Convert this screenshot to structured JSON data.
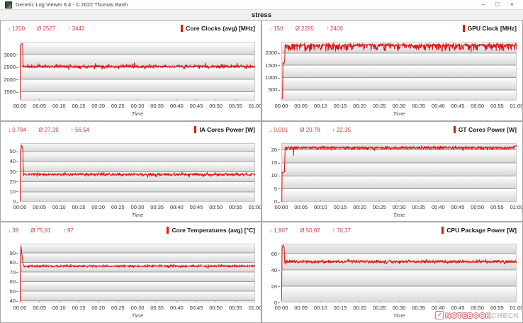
{
  "window": {
    "title": "Generic Log Viewer 6.4 - © 2022 Thomas Barth",
    "minimize": "–",
    "maximize": "□",
    "close": "×"
  },
  "header": {
    "title": "stress"
  },
  "watermark": {
    "brand_left": "NOTEBOOK",
    "brand_right": "CHECK",
    "check": "✓"
  },
  "chart_data": [
    {
      "type": "line",
      "title": "Core Clocks (avg) [MHz]",
      "stats": {
        "min": "↓ 1200",
        "avg": "Ø 2527",
        "max": "↑ 3442"
      },
      "xlabel": "Time",
      "x_ticks": [
        "00:00",
        "00:05",
        "00:10",
        "00:15",
        "00:20",
        "00:25",
        "00:30",
        "00:35",
        "00:40",
        "00:45",
        "00:50",
        "00:55",
        "01:00"
      ],
      "x_range_minutes": [
        0,
        60
      ],
      "y_ticks": [
        1500,
        2000,
        2500,
        3000
      ],
      "ylim": [
        1150,
        3520
      ],
      "line_color": "#dc1414",
      "series": {
        "pre": [
          [
            0,
            2500
          ],
          [
            0.04,
            1200
          ],
          [
            0.12,
            3350
          ],
          [
            0.5,
            3442
          ],
          [
            0.72,
            3442
          ],
          [
            0.8,
            2600
          ]
        ],
        "start": 0.8,
        "baseline": 2520,
        "noise": 42,
        "dip_freq": 0.05,
        "dip_amp": -110,
        "peak_freq": 0.06,
        "peak_amp": 130,
        "clamp": [
          1200,
          3442
        ],
        "events": [],
        "post": [],
        "seed": 11
      }
    },
    {
      "type": "line",
      "title": "GPU Clock [MHz]",
      "stats": {
        "min": "↓ 150",
        "avg": "Ø 2285",
        "max": "↑ 2400"
      },
      "xlabel": "Time",
      "x_ticks": [
        "00:00",
        "00:05",
        "00:10",
        "00:15",
        "00:20",
        "00:25",
        "00:30",
        "00:35",
        "00:40",
        "00:45",
        "00:50",
        "00:55",
        "01:00"
      ],
      "x_range_minutes": [
        0,
        60
      ],
      "y_ticks": [
        500,
        1000,
        1500,
        2000
      ],
      "ylim": [
        60,
        2460
      ],
      "line_color": "#dc1414",
      "series": {
        "pre": [
          [
            0,
            150
          ],
          [
            0.3,
            150
          ],
          [
            0.42,
            1620
          ],
          [
            0.5,
            1560
          ],
          [
            0.85,
            1620
          ],
          [
            0.95,
            2330
          ]
        ],
        "start": 0.95,
        "baseline": 2320,
        "noise": 45,
        "dip_freq": 0.28,
        "dip_amp": -240,
        "peak_freq": 0.15,
        "peak_amp": 70,
        "clamp": [
          150,
          2400
        ],
        "events": [],
        "post": [],
        "seed": 22
      }
    },
    {
      "type": "line",
      "title": "IA Cores Power [W]",
      "stats": {
        "min": "↓ 0,784",
        "avg": "Ø 27,29",
        "max": "↑ 56,54"
      },
      "xlabel": "Time",
      "x_ticks": [
        "00:00",
        "00:05",
        "00:10",
        "00:15",
        "00:20",
        "00:25",
        "00:30",
        "00:35",
        "00:40",
        "00:45",
        "00:50",
        "00:55",
        "01:00"
      ],
      "x_range_minutes": [
        0,
        60
      ],
      "y_ticks": [
        0,
        10,
        20,
        30,
        40,
        50
      ],
      "ylim": [
        0,
        58.5
      ],
      "line_color": "#dc1414",
      "series": {
        "pre": [
          [
            0,
            0.784
          ],
          [
            0.1,
            0.9
          ],
          [
            0.22,
            50
          ],
          [
            0.45,
            56.54
          ],
          [
            0.75,
            53
          ],
          [
            0.9,
            28.5
          ]
        ],
        "start": 0.9,
        "baseline": 27.3,
        "noise": 1.1,
        "dip_freq": 0.05,
        "dip_amp": -2.4,
        "peak_freq": 0.05,
        "peak_amp": 1.6,
        "clamp": [
          0.784,
          56.54
        ],
        "events": [],
        "post": [],
        "seed": 33
      }
    },
    {
      "type": "line",
      "title": "GT Cores Power [W]",
      "stats": {
        "min": "↓ 0,001",
        "avg": "Ø 20,78",
        "max": "↑ 22,35"
      },
      "xlabel": "Time",
      "x_ticks": [
        "00:00",
        "00:05",
        "00:10",
        "00:15",
        "00:20",
        "00:25",
        "00:30",
        "00:35",
        "00:40",
        "00:45",
        "00:50",
        "00:55",
        "01:00"
      ],
      "x_range_minutes": [
        0,
        60
      ],
      "y_ticks": [
        0,
        5,
        10,
        15,
        20
      ],
      "ylim": [
        0,
        22.6
      ],
      "line_color": "#dc1414",
      "series": {
        "pre": [
          [
            0,
            0.001
          ],
          [
            0.12,
            0.001
          ],
          [
            0.2,
            11.3
          ],
          [
            0.8,
            11.5
          ],
          [
            0.95,
            20.3
          ]
        ],
        "start": 0.95,
        "baseline": 20.8,
        "noise": 0.35,
        "dip_freq": 0.05,
        "dip_amp": -0.9,
        "peak_freq": 0.08,
        "peak_amp": 0.5,
        "clamp": [
          0.001,
          22.35
        ],
        "events": [
          [
            3.1,
            17.7
          ]
        ],
        "post": [
          [
            59.4,
            21.5
          ],
          [
            60,
            22.1
          ]
        ],
        "seed": 44
      }
    },
    {
      "type": "line",
      "title": "Core Temperatures (avg) [°C]",
      "stats": {
        "min": "↓ 39",
        "avg": "Ø 75,81",
        "max": "↑ 97"
      },
      "xlabel": "Time",
      "x_ticks": [
        "00:00",
        "00:05",
        "00:10",
        "00:15",
        "00:20",
        "00:25",
        "00:30",
        "00:35",
        "00:40",
        "00:45",
        "00:50",
        "00:55",
        "01:00"
      ],
      "x_range_minutes": [
        0,
        60
      ],
      "y_ticks": [
        40,
        50,
        60,
        70,
        80,
        90
      ],
      "ylim": [
        38,
        99.5
      ],
      "line_color": "#dc1414",
      "series": {
        "pre": [
          [
            0,
            39
          ],
          [
            0.08,
            39
          ],
          [
            0.3,
            97
          ],
          [
            0.5,
            89
          ],
          [
            0.8,
            79
          ],
          [
            1.0,
            76.5
          ]
        ],
        "start": 1.0,
        "baseline": 76,
        "noise": 0.8,
        "dip_freq": 0.04,
        "dip_amp": -1.2,
        "peak_freq": 0.05,
        "peak_amp": 1.6,
        "clamp": [
          39,
          97
        ],
        "events": [],
        "post": [],
        "seed": 55
      }
    },
    {
      "type": "line",
      "title": "CPU Package Power [W]",
      "stats": {
        "min": "↓ 1,907",
        "avg": "Ø 50,07",
        "max": "↑ 70,37"
      },
      "xlabel": "Time",
      "x_ticks": [
        "00:00",
        "00:05",
        "00:10",
        "00:15",
        "00:20",
        "00:25",
        "00:30",
        "00:35",
        "00:40",
        "00:45",
        "00:50",
        "00:55",
        "01:00"
      ],
      "x_range_minutes": [
        0,
        60
      ],
      "y_ticks": [
        0,
        20,
        40,
        60
      ],
      "ylim": [
        0,
        72
      ],
      "line_color": "#dc1414",
      "series": {
        "pre": [
          [
            0,
            1.907
          ],
          [
            0.06,
            1.907
          ],
          [
            0.2,
            67
          ],
          [
            0.45,
            70.37
          ],
          [
            0.7,
            68
          ],
          [
            0.85,
            51.5
          ]
        ],
        "start": 0.85,
        "baseline": 50,
        "noise": 1.4,
        "dip_freq": 0.05,
        "dip_amp": -2.2,
        "peak_freq": 0.06,
        "peak_amp": 2.0,
        "clamp": [
          1.907,
          70.37
        ],
        "events": [],
        "post": [],
        "seed": 66
      }
    }
  ]
}
